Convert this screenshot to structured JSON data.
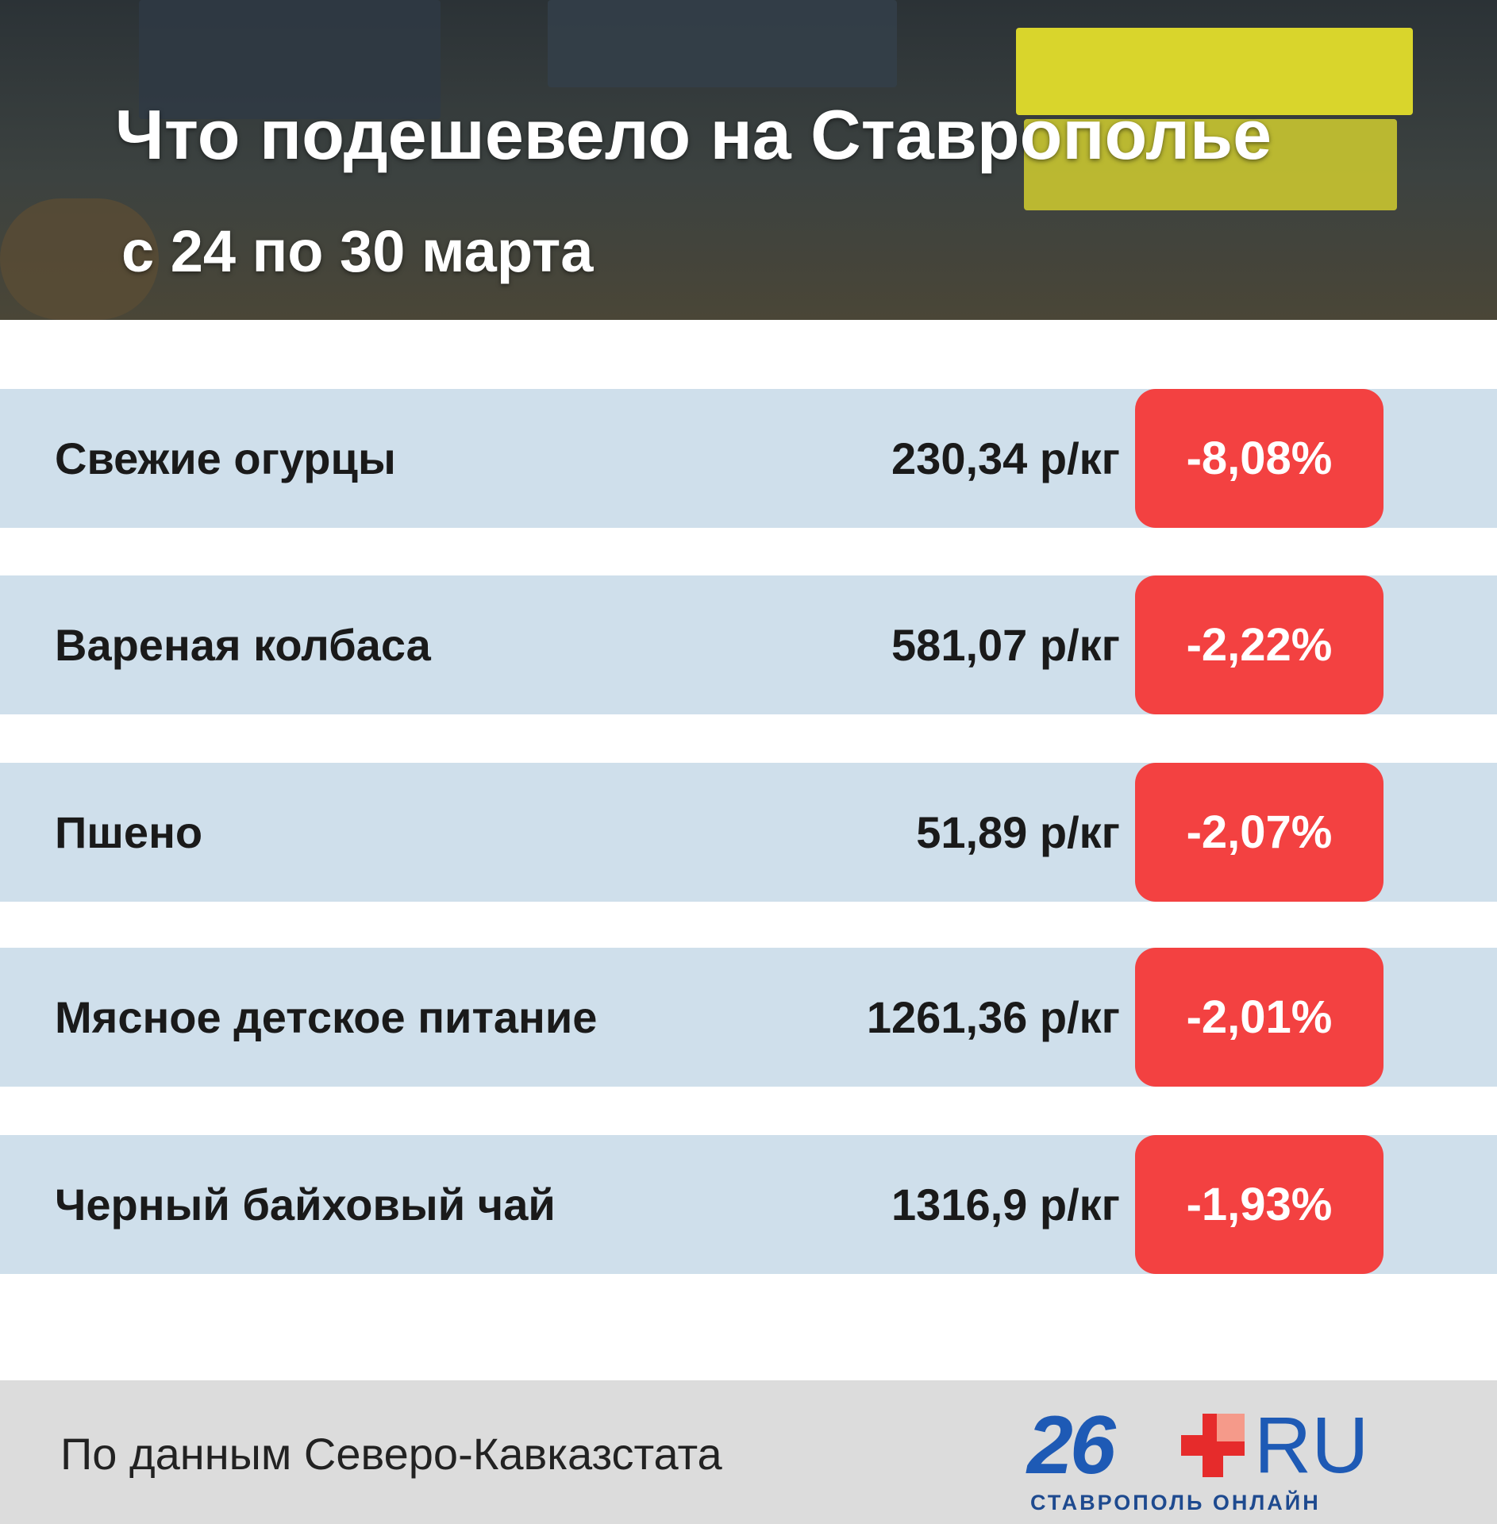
{
  "header": {
    "title": "Что подешевело на Ставрополье",
    "subtitle": "с 24 по 30 марта"
  },
  "table": {
    "rows": [
      [
        "Свежие огурцы",
        "230,34 р/кг",
        "-8,08%"
      ],
      [
        "Вареная колбаса",
        "581,07 р/кг",
        "-2,22%"
      ],
      [
        "Пшено",
        "51,89 р/кг",
        "-2,07%"
      ],
      [
        "Мясное детское питание",
        "1261,36 р/кг",
        "-2,01%"
      ],
      [
        "Черный байховый чай",
        "1316,9 р/кг",
        "-1,93%"
      ]
    ]
  },
  "footer": {
    "source": "По данным Северо-Кавказстата",
    "logo": {
      "number": "26",
      "domain": "RU",
      "tagline": "СТАВРОПОЛЬ ОНЛАЙН"
    }
  }
}
